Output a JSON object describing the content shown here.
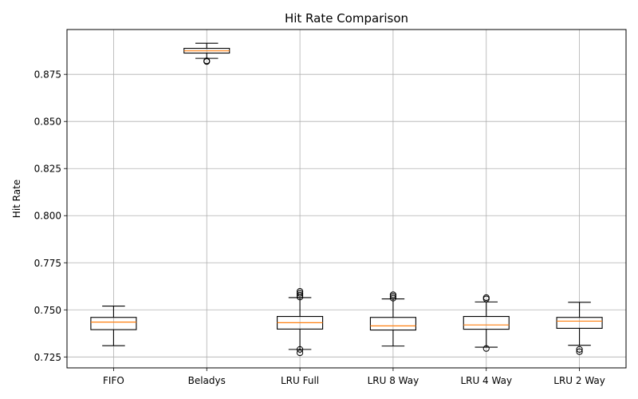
{
  "chart_data": {
    "type": "box",
    "title": "Hit Rate Comparison",
    "xlabel": "",
    "ylabel": "Hit Rate",
    "ylim": [
      0.7192,
      0.8988
    ],
    "yticks": [
      "0.725",
      "0.750",
      "0.775",
      "0.800",
      "0.825",
      "0.850",
      "0.875"
    ],
    "grid": true,
    "categories": [
      "FIFO",
      "Beladys",
      "LRU Full",
      "LRU 8 Way",
      "LRU 4 Way",
      "LRU 2 Way"
    ],
    "boxes": [
      {
        "whislo": 0.731,
        "q1": 0.7395,
        "med": 0.7435,
        "q3": 0.746,
        "whishi": 0.752,
        "fliers": []
      },
      {
        "whislo": 0.8835,
        "q1": 0.8863,
        "med": 0.8875,
        "q3": 0.8888,
        "whishi": 0.8915,
        "fliers": [
          0.8818,
          0.8822
        ]
      },
      {
        "whislo": 0.729,
        "q1": 0.7398,
        "med": 0.7432,
        "q3": 0.7465,
        "whishi": 0.7565,
        "fliers": [
          0.7272,
          0.729,
          0.7568,
          0.7578,
          0.7588,
          0.7598
        ]
      },
      {
        "whislo": 0.7308,
        "q1": 0.7393,
        "med": 0.7415,
        "q3": 0.746,
        "whishi": 0.7558,
        "fliers": [
          0.7562,
          0.7572,
          0.758
        ]
      },
      {
        "whislo": 0.7302,
        "q1": 0.7397,
        "med": 0.742,
        "q3": 0.7465,
        "whishi": 0.7542,
        "fliers": [
          0.7295,
          0.7558,
          0.7565
        ]
      },
      {
        "whislo": 0.7312,
        "q1": 0.7402,
        "med": 0.744,
        "q3": 0.746,
        "whishi": 0.754,
        "fliers": [
          0.7278,
          0.729
        ]
      }
    ]
  },
  "colors": {
    "median": "#ff7f0e",
    "box": "#000000",
    "grid": "#b0b0b0"
  }
}
